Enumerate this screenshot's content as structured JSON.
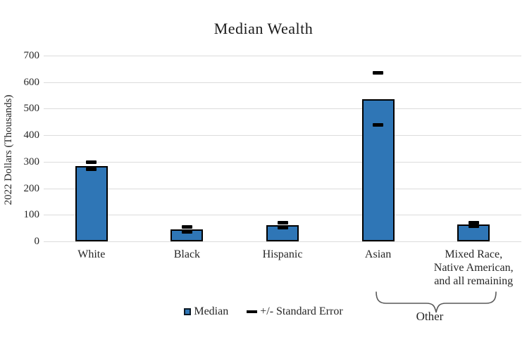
{
  "colors": {
    "bar_fill": "#2F76B6",
    "bar_border": "#000000",
    "error_mark": "#000000",
    "gridline": "#DCDCDC",
    "text": "#262626",
    "brace": "#595959"
  },
  "chart_data": {
    "type": "bar",
    "title": "Median Wealth",
    "ylabel": "2022 Dollars (Thousands)",
    "xlabel": "",
    "ylim": [
      0,
      700
    ],
    "yticks": [
      0,
      100,
      200,
      300,
      400,
      500,
      600,
      700
    ],
    "grid": "horizontal",
    "categories": [
      "White",
      "Black",
      "Hispanic",
      "Asian",
      "Mixed Race,\nNative American,\nand all remaining"
    ],
    "series": [
      {
        "name": "Median",
        "values": [
          285,
          45,
          62,
          536,
          63
        ]
      },
      {
        "name": "+/- Standard Error",
        "upper": [
          298,
          54,
          71,
          635,
          70
        ],
        "lower": [
          272,
          36,
          53,
          438,
          56
        ]
      }
    ],
    "legend": [
      {
        "label": "Median",
        "swatch": "square"
      },
      {
        "label": "+/- Standard Error",
        "swatch": "dash"
      }
    ],
    "legend_position": "bottom",
    "annotations": [
      {
        "label": "Other",
        "spans_categories": [
          "Asian",
          "Mixed Race, Native American, and all remaining"
        ]
      }
    ]
  }
}
